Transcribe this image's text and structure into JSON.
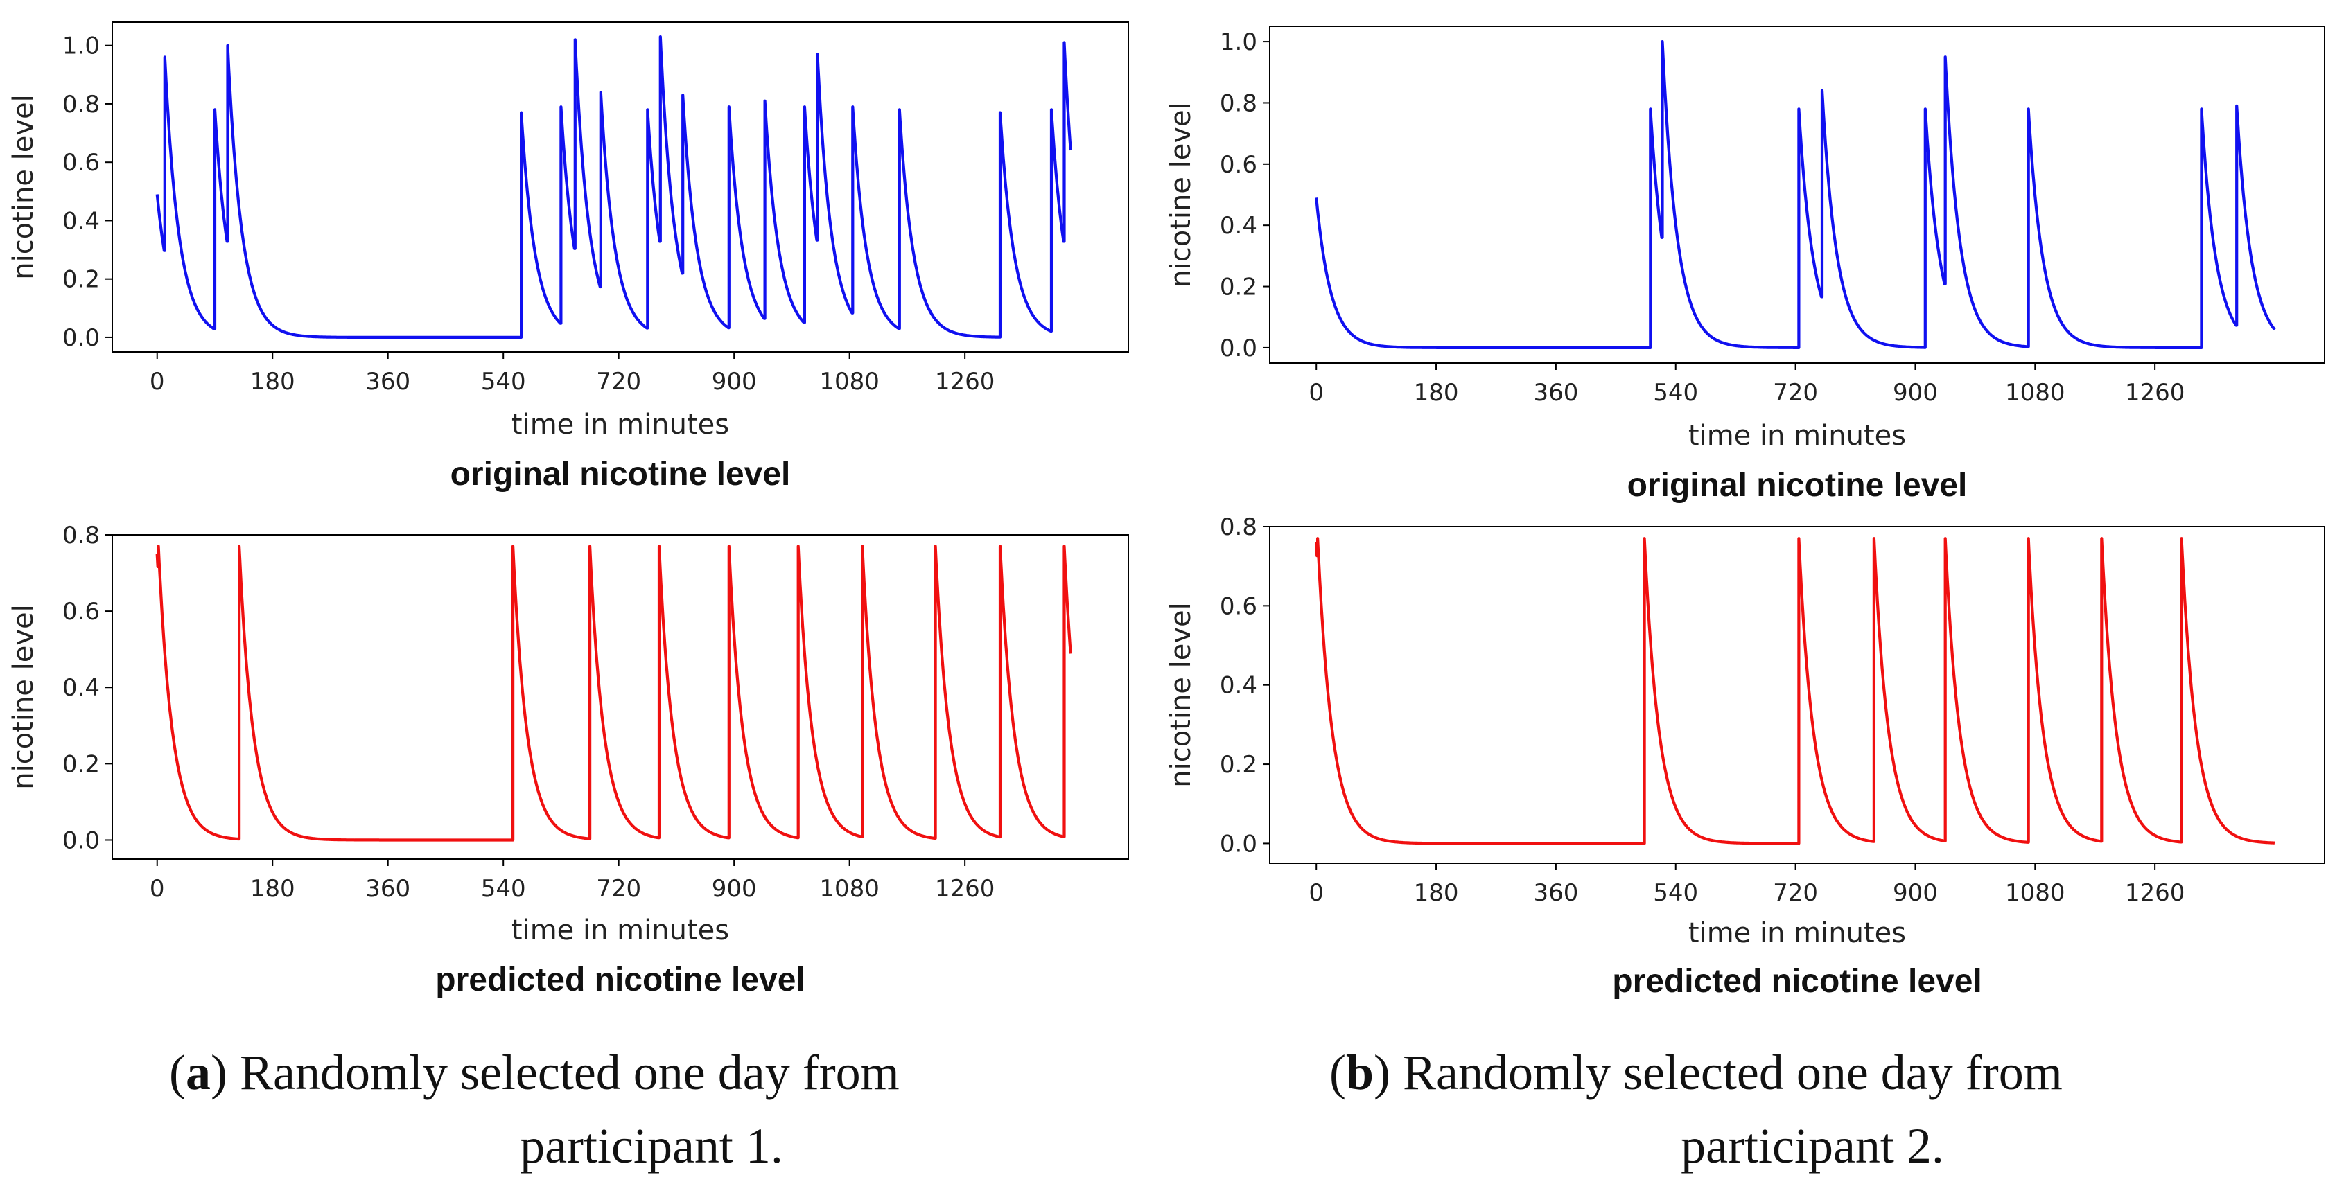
{
  "chart_data": [
    {
      "id": "a-original",
      "type": "line",
      "panel": "a",
      "color": "#1010f0",
      "subtitle": "original nicotine level",
      "xlabel": "time in minutes",
      "ylabel": "nicotine level",
      "xticks": [
        0,
        180,
        360,
        540,
        720,
        900,
        1080,
        1260
      ],
      "yticks": [
        "0.0",
        "0.2",
        "0.4",
        "0.6",
        "0.8",
        "1.0"
      ],
      "xlim": [
        -70,
        1515
      ],
      "ylim": [
        -0.05,
        1.08
      ],
      "start_value": 0.49,
      "end_minute": 1425,
      "peaks": [
        [
          12,
          0.96
        ],
        [
          90,
          0.78
        ],
        [
          110,
          1.0
        ],
        [
          568,
          0.77
        ],
        [
          630,
          0.79
        ],
        [
          652,
          1.02
        ],
        [
          692,
          0.84
        ],
        [
          765,
          0.78
        ],
        [
          785,
          1.03
        ],
        [
          820,
          0.83
        ],
        [
          892,
          0.79
        ],
        [
          948,
          0.81
        ],
        [
          1010,
          0.79
        ],
        [
          1030,
          0.97
        ],
        [
          1085,
          0.79
        ],
        [
          1158,
          0.78
        ],
        [
          1315,
          0.77
        ],
        [
          1395,
          0.78
        ],
        [
          1415,
          1.01
        ]
      ]
    },
    {
      "id": "a-predicted",
      "type": "line",
      "panel": "a",
      "color": "#f01010",
      "subtitle": "predicted nicotine level",
      "xlabel": "time in minutes",
      "ylabel": "nicotine level",
      "xticks": [
        0,
        180,
        360,
        540,
        720,
        900,
        1080,
        1260
      ],
      "yticks": [
        "0.0",
        "0.2",
        "0.4",
        "0.6",
        "0.8"
      ],
      "xlim": [
        -70,
        1515
      ],
      "ylim": [
        -0.05,
        0.8
      ],
      "start_value": 0.75,
      "end_minute": 1425,
      "peaks": [
        [
          2,
          0.77
        ],
        [
          128,
          0.77
        ],
        [
          555,
          0.77
        ],
        [
          675,
          0.77
        ],
        [
          783,
          0.77
        ],
        [
          892,
          0.77
        ],
        [
          1000,
          0.77
        ],
        [
          1100,
          0.77
        ],
        [
          1214,
          0.77
        ],
        [
          1315,
          0.77
        ],
        [
          1415,
          0.77
        ]
      ]
    },
    {
      "id": "b-original",
      "type": "line",
      "panel": "b",
      "color": "#1010f0",
      "subtitle": "original nicotine level",
      "xlabel": "time in minutes",
      "ylabel": "nicotine level",
      "xticks": [
        0,
        180,
        360,
        540,
        720,
        900,
        1080,
        1260
      ],
      "yticks": [
        "0.0",
        "0.2",
        "0.4",
        "0.6",
        "0.8",
        "1.0"
      ],
      "xlim": [
        -70,
        1515
      ],
      "ylim": [
        -0.05,
        1.05
      ],
      "start_value": 0.49,
      "end_minute": 1440,
      "peaks": [
        [
          502,
          0.78
        ],
        [
          520,
          1.0
        ],
        [
          725,
          0.78
        ],
        [
          760,
          0.84
        ],
        [
          915,
          0.78
        ],
        [
          945,
          0.95
        ],
        [
          1070,
          0.78
        ],
        [
          1330,
          0.78
        ],
        [
          1383,
          0.79
        ]
      ]
    },
    {
      "id": "b-predicted",
      "type": "line",
      "panel": "b",
      "color": "#f01010",
      "subtitle": "predicted nicotine level",
      "xlabel": "time in minutes",
      "ylabel": "nicotine level",
      "xticks": [
        0,
        180,
        360,
        540,
        720,
        900,
        1080,
        1260
      ],
      "yticks": [
        "0.0",
        "0.2",
        "0.4",
        "0.6",
        "0.8"
      ],
      "xlim": [
        -70,
        1515
      ],
      "ylim": [
        -0.05,
        0.8
      ],
      "start_value": 0.76,
      "end_minute": 1440,
      "peaks": [
        [
          2,
          0.77
        ],
        [
          493,
          0.77
        ],
        [
          725,
          0.77
        ],
        [
          838,
          0.77
        ],
        [
          945,
          0.77
        ],
        [
          1070,
          0.77
        ],
        [
          1180,
          0.77
        ],
        [
          1300,
          0.77
        ]
      ]
    }
  ],
  "captions": {
    "a": {
      "letter": "a",
      "line1_rest": ") Randomly selected one day from",
      "line2": "participant 1."
    },
    "b": {
      "letter": "b",
      "line1_rest": ") Randomly selected one day from",
      "line2": "participant 2."
    }
  }
}
